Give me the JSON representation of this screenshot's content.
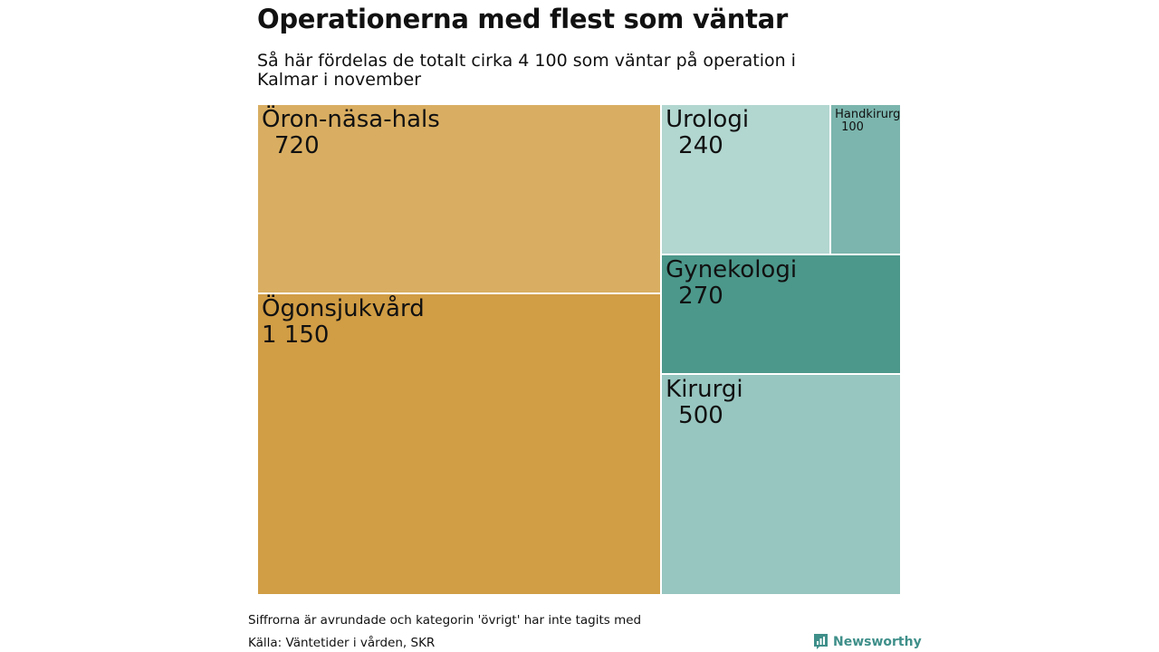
{
  "header": {
    "title": "Operationerna med flest som väntar",
    "subtitle": "Så här fördelas de totalt cirka 4 100 som väntar på operation i Kalmar i november"
  },
  "footer": {
    "note": "Siffrorna är avrundade och kategorin 'övrigt' har inte tagits med",
    "source": "Källa: Väntetider i vården, SKR",
    "brand": "Newsworthy",
    "brand_icon": "newsworthy-logo-icon",
    "brand_color": "#3f8f8a"
  },
  "chart_data": {
    "type": "treemap",
    "title": "Operationerna med flest som väntar",
    "subtitle": "Så här fördelas de totalt cirka 4 100 som väntar på operation i Kalmar i november",
    "items": [
      {
        "name": "Öron-näsa-hals",
        "value": 720,
        "label_value": "720",
        "color": "#d9ae62"
      },
      {
        "name": "Ögonsjukvård",
        "value": 1150,
        "label_value": "1 150",
        "color": "#d19d45"
      },
      {
        "name": "Urologi",
        "value": 240,
        "label_value": "240",
        "color": "#b2d6d0"
      },
      {
        "name": "Handkirurgi",
        "value": 100,
        "label_value": "100",
        "color": "#7bb5ad"
      },
      {
        "name": "Gynekologi",
        "value": 270,
        "label_value": "270",
        "color": "#4c988b"
      },
      {
        "name": "Kirurgi",
        "value": 500,
        "label_value": "500",
        "color": "#97c5bf"
      }
    ]
  }
}
